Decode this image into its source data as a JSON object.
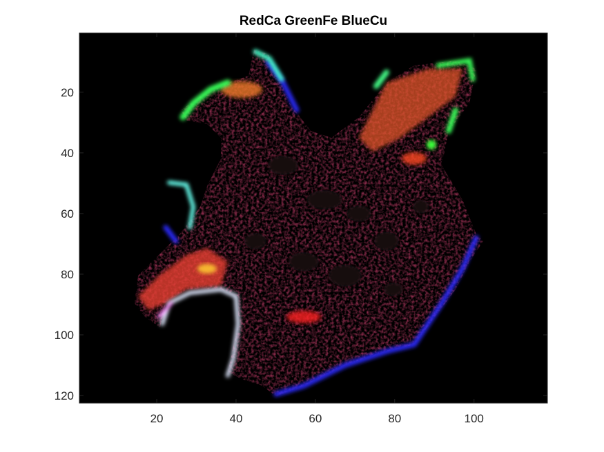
{
  "title": "RedCa GreenFe BlueCu",
  "image": {
    "x_range": [
      0.5,
      118.5
    ],
    "y_range": [
      0.5,
      122.5
    ],
    "y_reversed": true,
    "background": "#000000",
    "channels": {
      "red": "Ca",
      "green": "Fe",
      "blue": "Cu"
    }
  },
  "axes": {
    "x_ticks": [
      20,
      40,
      60,
      80,
      100
    ],
    "y_ticks": [
      20,
      40,
      60,
      80,
      100,
      120
    ],
    "axis_color": "#262626"
  }
}
